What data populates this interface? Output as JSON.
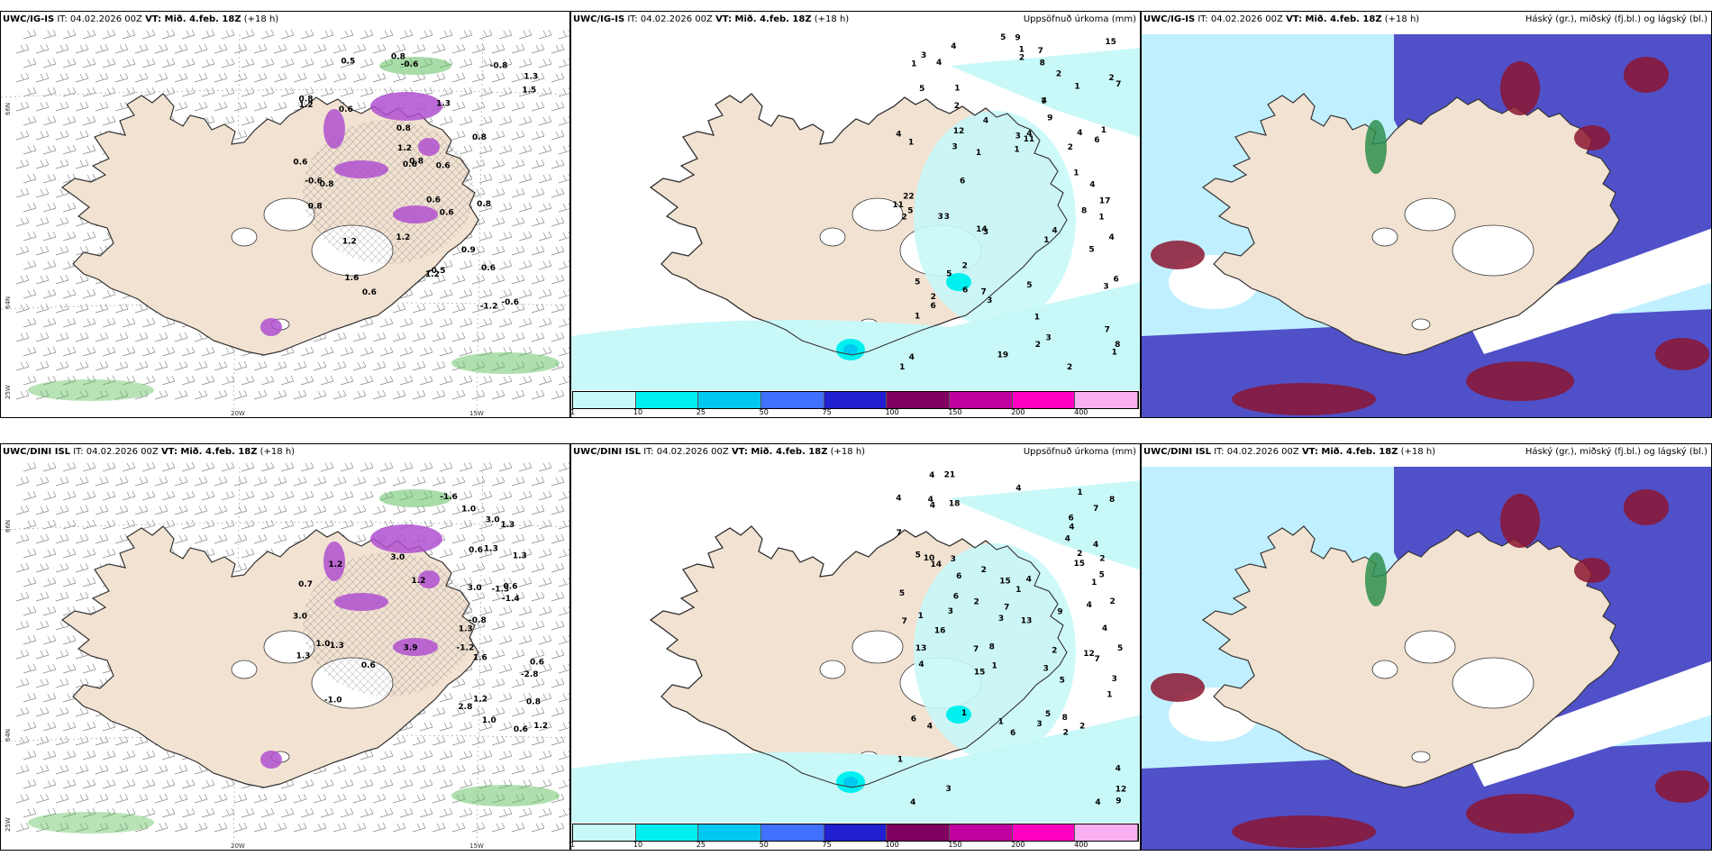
{
  "panels": [
    {
      "id": "p11",
      "title_model": "UWC/IG-IS",
      "title_it": "IT: 04.02.2026 00Z",
      "title_vt": "VT: Mið. 4.feb. 18Z",
      "title_lead": "(+18 h)",
      "right_title": "",
      "lat_labels": [
        "66N",
        "64N",
        "25W"
      ],
      "lon_labels": [
        "20W",
        "15W"
      ],
      "markers": [
        "0.6",
        "-0.6",
        "0.8",
        "1.3",
        "0.8",
        "-0.6",
        "0.8",
        "1.3",
        "0.8",
        "-0.8",
        "0.8",
        "0.8",
        "0.8",
        "1.2",
        "0.6",
        "1.2",
        "-0.5",
        "-0.6",
        "0.6",
        "1.2",
        "0.9",
        "0.6",
        "1.5",
        "1.2",
        "1.6",
        "0.6",
        "0.6",
        "0.5",
        "0.6",
        "1.2",
        "0.8",
        "-1.2",
        "0.6"
      ]
    },
    {
      "id": "p12",
      "title_model": "UWC/IG-IS",
      "title_it": "IT: 04.02.2026 00Z",
      "title_vt": "VT: Mið. 4.feb. 18Z",
      "title_lead": "(+18 h)",
      "right_title": "Uppsöfnuð úrkoma (mm)",
      "markers": [
        "1",
        "1",
        "1",
        "1",
        "1",
        "3",
        "5",
        "4",
        "6",
        "2",
        "4",
        "3",
        "11",
        "3",
        "2",
        "2",
        "1",
        "2",
        "2",
        "3",
        "2",
        "3",
        "1",
        "1",
        "4",
        "14",
        "15",
        "22",
        "11",
        "3",
        "4",
        "5",
        "7",
        "3",
        "8",
        "4",
        "6",
        "6",
        "9",
        "17",
        "5",
        "1",
        "4",
        "8",
        "12",
        "19",
        "7",
        "1",
        "1",
        "1",
        "5",
        "8",
        "7",
        "4",
        "1",
        "5",
        "6",
        "3",
        "1",
        "9",
        "4",
        "2",
        "2",
        "2",
        "7",
        "4",
        "5",
        "4",
        "3",
        "4",
        "6",
        "7",
        "5",
        "2",
        "1"
      ],
      "colorbar_labels": [
        "1",
        "10",
        "25",
        "50",
        "75",
        "100",
        "150",
        "200",
        "400"
      ]
    },
    {
      "id": "p13",
      "title_model": "UWC/IG-IS",
      "title_it": "IT: 04.02.2026 00Z",
      "title_vt": "VT: Mið. 4.feb. 18Z",
      "title_lead": "(+18 h)",
      "right_title": "Háský (gr.), miðský (fj.bl.) og lágský (bl.)",
      "markers": []
    },
    {
      "id": "p21",
      "title_model": "UWC/DINI ISL",
      "title_it": "IT: 04.02.2026 00Z",
      "title_vt": "VT: Mið. 4.feb. 18Z",
      "title_lead": "(+18 h)",
      "right_title": "",
      "lat_labels": [
        "66N",
        "64N",
        "25W"
      ],
      "lon_labels": [
        "20W",
        "15W"
      ],
      "markers": [
        "-1.2",
        "0.6",
        "-1.3",
        "-2.8",
        "2.8",
        "1.3",
        "0.6",
        "1.2",
        "0.8",
        "1.0",
        "-0.8",
        "1.3",
        "1.3",
        "1.6",
        "0.6",
        "0.6",
        "1.3",
        "1.0",
        "3.0",
        "3.0",
        "3.9",
        "3.0",
        "3.0",
        "1.0",
        "-1.4",
        "-1.0",
        "1.2",
        "0.6",
        "1.2",
        "-1.3",
        "1.3",
        "-1.6",
        "0.7",
        "1.2"
      ]
    },
    {
      "id": "p22",
      "title_model": "UWC/DINI ISL",
      "title_it": "IT: 04.02.2026 00Z",
      "title_vt": "VT: Mið. 4.feb. 18Z",
      "title_lead": "(+18 h)",
      "right_title": "Uppsöfnuð úrkoma (mm)",
      "markers": [
        "2",
        "1",
        "1",
        "1",
        "2",
        "1",
        "3",
        "7",
        "10",
        "7",
        "6",
        "15",
        "13",
        "4",
        "15",
        "21",
        "5",
        "3",
        "3",
        "4",
        "6",
        "16",
        "3",
        "6",
        "4",
        "1",
        "2",
        "7",
        "5",
        "4",
        "9",
        "1",
        "18",
        "12",
        "8",
        "12",
        "7",
        "3",
        "13",
        "14",
        "4",
        "2",
        "2",
        "2",
        "4",
        "5",
        "8",
        "4",
        "4",
        "4",
        "15",
        "8",
        "4",
        "5",
        "4",
        "4",
        "4",
        "2",
        "1",
        "1",
        "7",
        "6",
        "1",
        "3",
        "7",
        "9",
        "5",
        "2",
        "4",
        "6",
        "4",
        "3",
        "4",
        "5"
      ],
      "colorbar_labels": [
        "1",
        "10",
        "25",
        "50",
        "75",
        "100",
        "150",
        "200",
        "400"
      ]
    },
    {
      "id": "p23",
      "title_model": "UWC/DINI ISL",
      "title_it": "IT: 04.02.2026 00Z",
      "title_vt": "VT: Mið. 4.feb. 18Z",
      "title_lead": "(+18 h)",
      "right_title": "Háský (gr.), miðský (fj.bl.) og lágský (bl.)",
      "markers": []
    }
  ],
  "colors": {
    "land": "#f2e2d2",
    "precip": [
      "#c8f8f8",
      "#00f0f0",
      "#00c8f0",
      "#4070ff",
      "#2020d0",
      "#800060",
      "#c000a0",
      "#ff00c0",
      "#f8b0f0"
    ],
    "high_cloud": "#c0f0ff",
    "mid_cloud": "#5050c8",
    "low_cloud": "#8b1530",
    "wind_barb": "#888888",
    "negative_temp": "#b050d0",
    "positive_temp": "#60c060"
  }
}
